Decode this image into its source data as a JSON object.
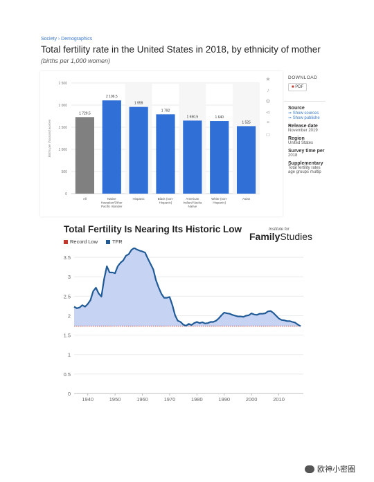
{
  "breadcrumb": "Society › Demographics",
  "chart1": {
    "title": "Total fertility rate in the United States in 2018, by ethnicity of mother",
    "subtitle": "(births per 1,000 women)"
  },
  "sidebar": {
    "download_label": "DOWNLOAD",
    "pdf_label": "PDF",
    "source_label": "Source",
    "show_sources": "➞ Show sources",
    "show_publisher": "➞ Show publishe",
    "release_date_label": "Release date",
    "release_date": "November 2019",
    "region_label": "Region",
    "region": "United States",
    "survey_label": "Survey time per",
    "survey": "2018",
    "supplementary_label": "Supplementary",
    "supplementary_line1": "Total fertility rates",
    "supplementary_line2": "age groups multip"
  },
  "chart2": {
    "title": "Total Fertility Is Nearing Its Historic Low",
    "logo_small": "Institute for",
    "logo_family": "Family",
    "logo_studies": "Studies"
  },
  "watermark": "欧神小密圈",
  "colors": {
    "bar_blue": "#2f6fd6",
    "bar_gray": "#808080",
    "line_blue": "#1f5a96",
    "area_fill": "#c7d3f2",
    "record_low": "#c0392b"
  },
  "chart_data": [
    {
      "type": "bar",
      "ylabel": "Births per thousand women",
      "ylim": [
        0,
        2500
      ],
      "yticks": [
        "2 500",
        "2 000",
        "1 500",
        "1 000",
        "500",
        "0"
      ],
      "ytick_values": [
        2500,
        2000,
        1500,
        1000,
        500,
        0
      ],
      "categories": [
        [
          "All"
        ],
        [
          "Native",
          "Hawaiian/Other",
          "Pacific Islander"
        ],
        [
          "Hispanic"
        ],
        [
          "Black (non-",
          "Hispanic)"
        ],
        [
          "American",
          "Indian/Alaska",
          "Native"
        ],
        [
          "White (non-",
          "Hispanic)"
        ],
        [
          "Asian"
        ]
      ],
      "values": [
        1729.5,
        2106.5,
        1959,
        1792,
        1650.5,
        1640,
        1525
      ],
      "value_labels": [
        "1 729.5",
        "2 106.5",
        "1 959",
        "1 792",
        "1 650.5",
        "1 640",
        "1 525"
      ],
      "grid": true
    },
    {
      "type": "area",
      "legend": [
        "Record Low",
        "TFR"
      ],
      "ylim": [
        0,
        3.75
      ],
      "yticks": [
        "0",
        "0.5",
        "1",
        "1.5",
        "2",
        "2.5",
        "3",
        "3.5"
      ],
      "ytick_values": [
        0,
        0.5,
        1,
        1.5,
        2,
        2.5,
        3,
        3.5
      ],
      "xlim": [
        1935,
        2019
      ],
      "xticks": [
        "1940",
        "1950",
        "1960",
        "1970",
        "1980",
        "1990",
        "2000",
        "2010"
      ],
      "xtick_values": [
        1940,
        1950,
        1960,
        1970,
        1980,
        1990,
        2000,
        2010
      ],
      "record_low": 1.73,
      "x": [
        1935,
        1936,
        1937,
        1938,
        1939,
        1940,
        1941,
        1942,
        1943,
        1944,
        1945,
        1946,
        1947,
        1948,
        1949,
        1950,
        1951,
        1952,
        1953,
        1954,
        1955,
        1956,
        1957,
        1958,
        1959,
        1960,
        1961,
        1962,
        1963,
        1964,
        1965,
        1966,
        1967,
        1968,
        1969,
        1970,
        1971,
        1972,
        1973,
        1974,
        1975,
        1976,
        1977,
        1978,
        1979,
        1980,
        1981,
        1982,
        1983,
        1984,
        1985,
        1986,
        1987,
        1988,
        1989,
        1990,
        1991,
        1992,
        1993,
        1994,
        1995,
        1996,
        1997,
        1998,
        1999,
        2000,
        2001,
        2002,
        2003,
        2004,
        2005,
        2006,
        2007,
        2008,
        2009,
        2010,
        2011,
        2012,
        2013,
        2014,
        2015,
        2016,
        2017,
        2018
      ],
      "y": [
        2.23,
        2.19,
        2.21,
        2.27,
        2.23,
        2.3,
        2.4,
        2.63,
        2.72,
        2.57,
        2.49,
        2.94,
        3.27,
        3.11,
        3.11,
        3.09,
        3.27,
        3.36,
        3.42,
        3.54,
        3.58,
        3.69,
        3.74,
        3.7,
        3.67,
        3.65,
        3.62,
        3.47,
        3.33,
        3.19,
        2.91,
        2.72,
        2.56,
        2.46,
        2.46,
        2.48,
        2.27,
        2.01,
        1.87,
        1.84,
        1.77,
        1.74,
        1.79,
        1.76,
        1.81,
        1.84,
        1.81,
        1.83,
        1.8,
        1.81,
        1.84,
        1.84,
        1.87,
        1.93,
        2.01,
        2.08,
        2.06,
        2.05,
        2.02,
        2.0,
        1.98,
        1.98,
        1.97,
        2.0,
        2.01,
        2.06,
        2.03,
        2.02,
        2.05,
        2.05,
        2.06,
        2.11,
        2.12,
        2.07,
        2.0,
        1.93,
        1.89,
        1.88,
        1.86,
        1.86,
        1.84,
        1.82,
        1.77,
        1.73
      ]
    }
  ]
}
